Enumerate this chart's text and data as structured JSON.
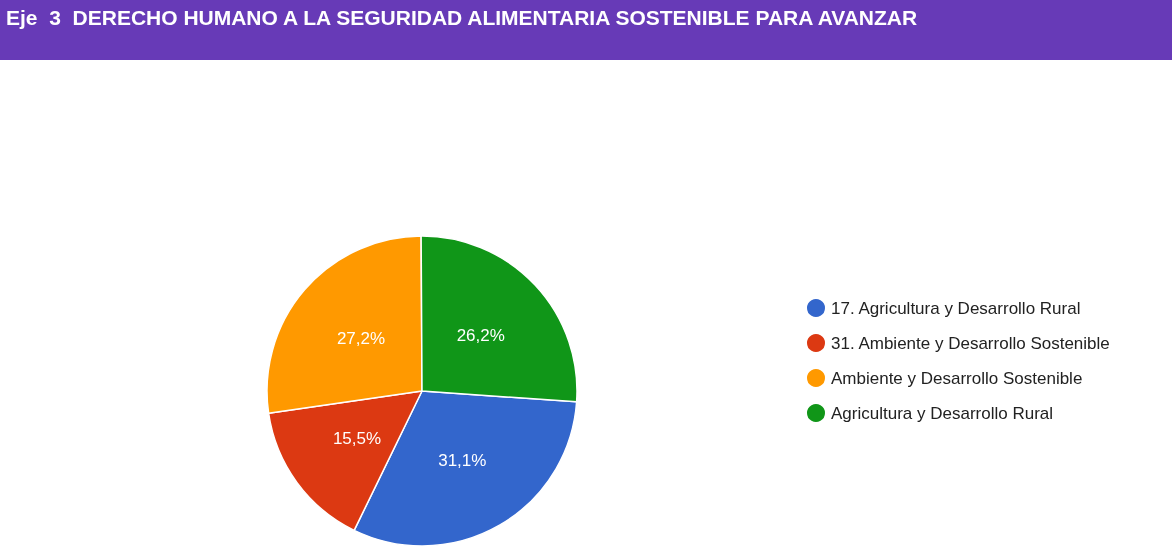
{
  "chart_data": {
    "type": "pie",
    "title": "Eje  3  DERECHO HUMANO A LA SEGURIDAD ALIMENTARIA SOSTENIBLE PARA AVANZAR",
    "categories": [
      "17. Agricultura y Desarrollo Rural",
      "31. Ambiente y Desarrollo Sostenible",
      "Ambiente y Desarrollo Sostenible",
      "Agricultura y Desarrollo Rural"
    ],
    "values": [
      31.1,
      15.5,
      27.2,
      26.2
    ],
    "value_labels": [
      "31,1%",
      "15,5%",
      "27,2%",
      "26,2%"
    ],
    "colors": [
      "#3366cc",
      "#dc3912",
      "#ff9900",
      "#109618"
    ],
    "legend": "right"
  }
}
